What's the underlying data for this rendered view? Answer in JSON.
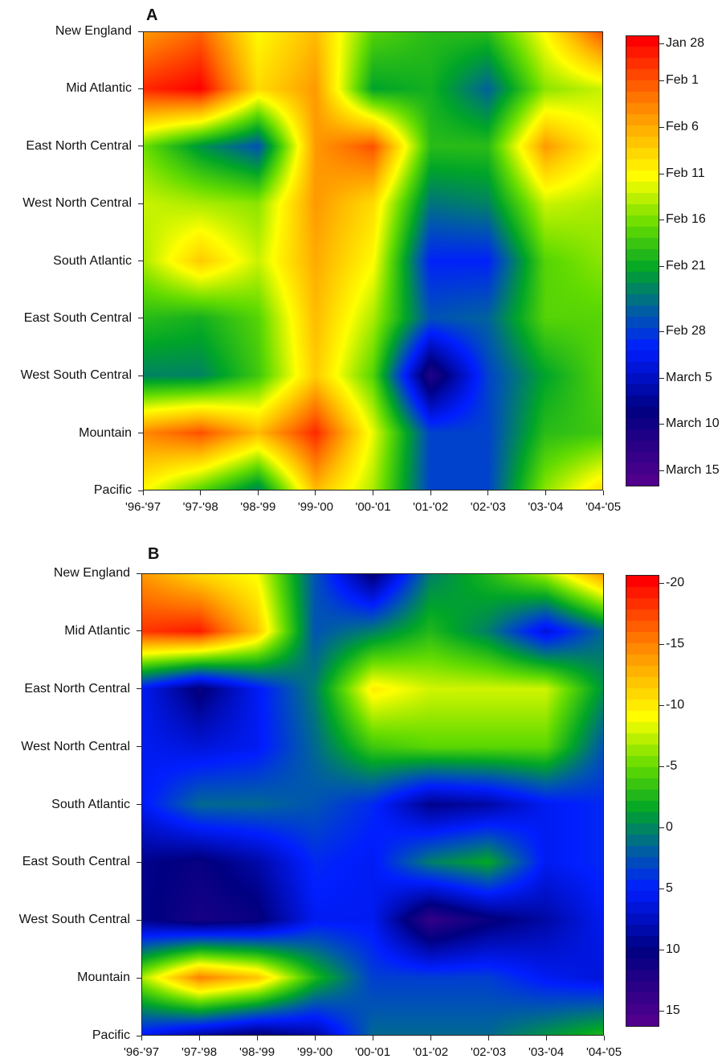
{
  "chart_data": [
    {
      "type": "heatmap",
      "panel_label": "A",
      "rows": [
        "New England",
        "Mid Atlantic",
        "East North Central",
        "West North Central",
        "South Atlantic",
        "East South Central",
        "West South Central",
        "Mountain",
        "Pacific"
      ],
      "columns": [
        "'96-'97",
        "'97-'98",
        "'98-'99",
        "'99-'00",
        "'00-'01",
        "'01-'02",
        "'02-'03",
        "'03-'04",
        "'04-'05"
      ],
      "value_unit": "days after Jan 28",
      "values": [
        [
          8,
          5,
          14,
          10,
          20,
          22,
          22,
          14,
          4
        ],
        [
          2,
          0,
          12,
          8,
          24,
          23,
          28,
          18,
          16
        ],
        [
          19,
          25,
          29,
          8,
          4,
          22,
          22,
          8,
          14
        ],
        [
          16,
          17,
          18,
          8,
          12,
          27,
          26,
          16,
          17
        ],
        [
          17,
          11,
          16,
          9,
          14,
          32,
          32,
          20,
          18
        ],
        [
          22,
          23,
          20,
          10,
          17,
          29,
          28,
          20,
          20
        ],
        [
          26,
          26,
          21,
          11,
          20,
          42,
          30,
          24,
          20
        ],
        [
          7,
          4,
          10,
          2,
          15,
          30,
          30,
          22,
          21
        ],
        [
          14,
          20,
          26,
          10,
          17,
          30,
          30,
          18,
          12
        ]
      ],
      "colorbar": {
        "labels": [
          "Jan 28",
          "Feb 1",
          "Feb 6",
          "Feb 11",
          "Feb 16",
          "Feb 21",
          "Feb 28",
          "March 5",
          "March 10",
          "March 15"
        ],
        "label_values": [
          0,
          4,
          9,
          14,
          19,
          24,
          31,
          36,
          41,
          46
        ],
        "range": [
          0,
          46
        ]
      }
    },
    {
      "type": "heatmap",
      "panel_label": "B",
      "rows": [
        "New England",
        "Mid Atlantic",
        "East North Central",
        "West North Central",
        "South Atlantic",
        "East South Central",
        "West South Central",
        "Mountain",
        "Pacific"
      ],
      "columns": [
        "'96-'97",
        "'97-'98",
        "'98-'99",
        "'99-'00",
        "'00-'01",
        "'01-'02",
        "'02-'03",
        "'03-'04",
        "'04-'05"
      ],
      "values": [
        [
          -14,
          -11,
          -9,
          2,
          10,
          0,
          -3,
          -7,
          -14
        ],
        [
          -18,
          -19,
          -12,
          2,
          0,
          -3,
          0,
          6,
          1
        ],
        [
          5,
          10,
          5,
          0,
          -10,
          -8,
          -8,
          -8,
          -1
        ],
        [
          5,
          6,
          5,
          1,
          -4,
          -5,
          -5,
          -5,
          2
        ],
        [
          5,
          1,
          1,
          2,
          4,
          9,
          8,
          5,
          4
        ],
        [
          9,
          10,
          8,
          4,
          5,
          0,
          -2,
          5,
          4
        ],
        [
          9,
          11,
          10,
          5,
          5,
          13,
          10,
          8,
          5
        ],
        [
          -7,
          -15,
          -12,
          -3,
          3,
          3,
          3,
          5,
          6
        ],
        [
          5,
          8,
          10,
          8,
          1,
          1,
          1,
          -1,
          -3
        ]
      ],
      "colorbar": {
        "labels": [
          "-20",
          "-15",
          "-10",
          "-5",
          "0",
          "5",
          "10",
          "15"
        ],
        "label_values": [
          -20,
          -15,
          -10,
          -5,
          0,
          5,
          10,
          15
        ],
        "range": [
          -20,
          15
        ]
      }
    }
  ]
}
